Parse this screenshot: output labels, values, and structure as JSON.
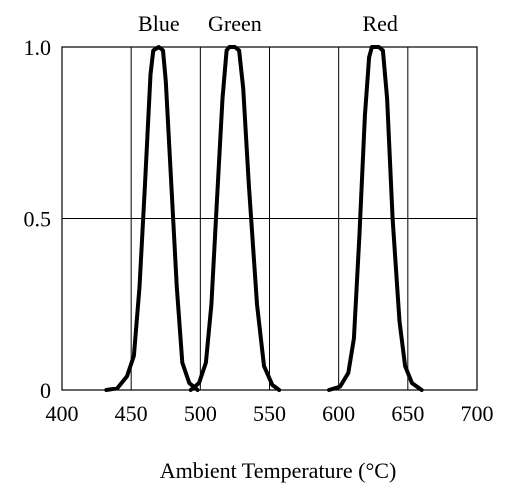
{
  "chart_data": {
    "type": "line",
    "title": "",
    "xlabel": "Ambient Temperature (°C)",
    "ylabel": "",
    "xlim": [
      400,
      700
    ],
    "ylim": [
      0,
      1.0
    ],
    "grid": true,
    "x_ticks": [
      400,
      450,
      500,
      550,
      600,
      650,
      700
    ],
    "x_tick_labels": [
      "400",
      "450",
      "500",
      "550",
      "600",
      "650",
      "700"
    ],
    "y_ticks": [
      0,
      0.5,
      1.0
    ],
    "y_tick_labels": [
      "0",
      "0.5",
      "1.0"
    ],
    "series": [
      {
        "name": "Blue",
        "label_x": 470,
        "points": [
          [
            432,
            0
          ],
          [
            440,
            0.005
          ],
          [
            447,
            0.04
          ],
          [
            452,
            0.1
          ],
          [
            456,
            0.3
          ],
          [
            460,
            0.6
          ],
          [
            464,
            0.92
          ],
          [
            466,
            0.99
          ],
          [
            470,
            1.0
          ],
          [
            473,
            0.99
          ],
          [
            475,
            0.9
          ],
          [
            479,
            0.6
          ],
          [
            483,
            0.3
          ],
          [
            487,
            0.08
          ],
          [
            492,
            0.02
          ],
          [
            498,
            0
          ]
        ]
      },
      {
        "name": "Green",
        "label_x": 525,
        "points": [
          [
            493,
            0
          ],
          [
            499,
            0.02
          ],
          [
            504,
            0.08
          ],
          [
            508,
            0.25
          ],
          [
            512,
            0.55
          ],
          [
            516,
            0.85
          ],
          [
            519,
            0.99
          ],
          [
            521,
            1.0
          ],
          [
            525,
            1.0
          ],
          [
            528,
            0.99
          ],
          [
            531,
            0.88
          ],
          [
            535,
            0.6
          ],
          [
            541,
            0.25
          ],
          [
            546,
            0.07
          ],
          [
            552,
            0.015
          ],
          [
            557,
            0
          ]
        ]
      },
      {
        "name": "Red",
        "label_x": 630,
        "points": [
          [
            593,
            0
          ],
          [
            601,
            0.01
          ],
          [
            607,
            0.05
          ],
          [
            611,
            0.15
          ],
          [
            615,
            0.45
          ],
          [
            619,
            0.8
          ],
          [
            622,
            0.97
          ],
          [
            624,
            1.0
          ],
          [
            629,
            1.0
          ],
          [
            632,
            0.99
          ],
          [
            635,
            0.85
          ],
          [
            639,
            0.5
          ],
          [
            644,
            0.2
          ],
          [
            648,
            0.07
          ],
          [
            653,
            0.02
          ],
          [
            660,
            0
          ]
        ]
      }
    ]
  },
  "colors": {
    "line": "#000000",
    "grid": "#000000",
    "background": "#ffffff"
  }
}
